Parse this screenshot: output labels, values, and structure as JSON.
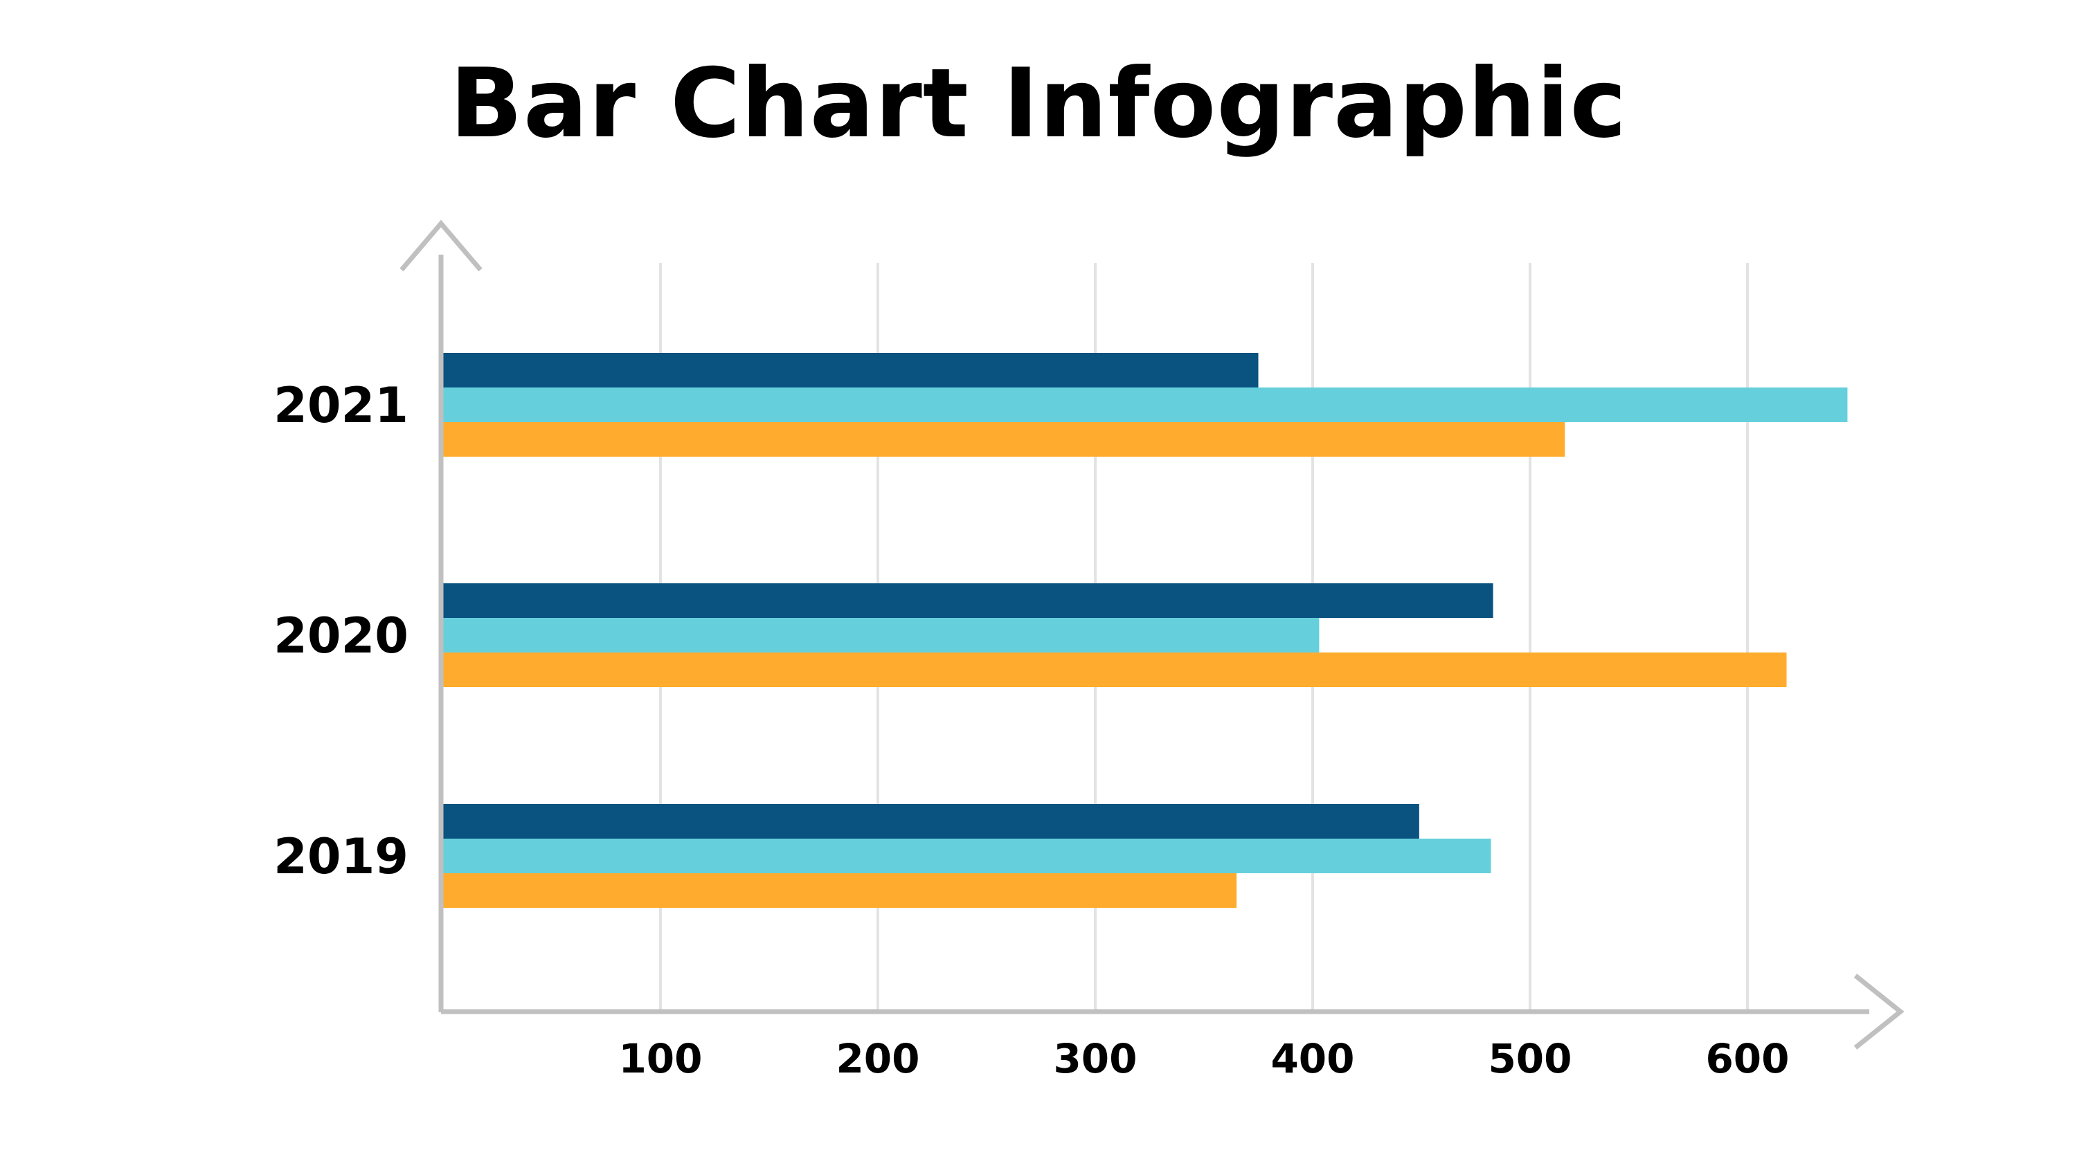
{
  "title": "Bar Chart Infographic",
  "chart_data": {
    "type": "bar",
    "orientation": "horizontal",
    "title": "Bar Chart Infographic",
    "xlabel": "",
    "ylabel": "",
    "categories": [
      "2021",
      "2020",
      "2019"
    ],
    "series": [
      {
        "values": [
          375,
          483,
          449
        ],
        "color": "#0a5280"
      },
      {
        "values": [
          646,
          403,
          482
        ],
        "color": "#65d0dc"
      },
      {
        "values": [
          516,
          618,
          365
        ],
        "color": "#ffac2e"
      }
    ],
    "x_ticks": [
      "100",
      "200",
      "300",
      "400",
      "500",
      "600"
    ],
    "xlim": [
      0,
      660
    ],
    "grid": true,
    "legend": "none",
    "axis_color": "#c0c0c0",
    "grid_color": "#e3e3e3"
  }
}
